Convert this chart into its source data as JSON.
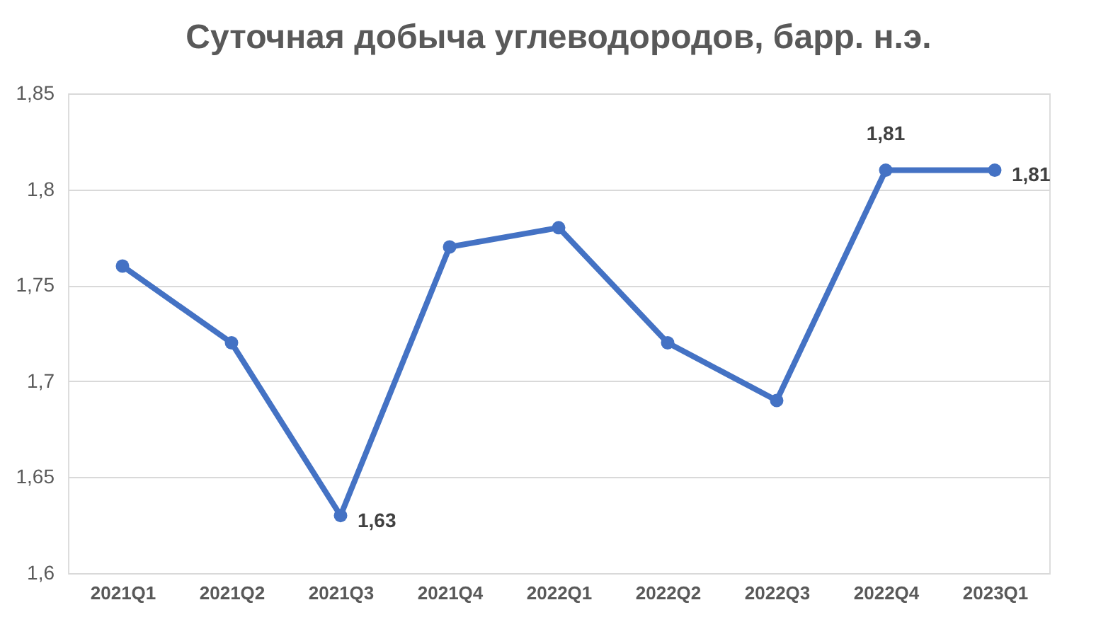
{
  "chart_data": {
    "type": "line",
    "title": "Суточная добыча углеводородов, барр. н.э.",
    "categories": [
      "2021Q1",
      "2021Q2",
      "2021Q3",
      "2021Q4",
      "2022Q1",
      "2022Q2",
      "2022Q3",
      "2022Q4",
      "2023Q1"
    ],
    "series": [
      {
        "color": "#4472c4",
        "values": [
          1.76,
          1.72,
          1.63,
          1.77,
          1.78,
          1.72,
          1.69,
          1.81,
          1.81
        ],
        "value_labels": [
          null,
          null,
          "1,63",
          null,
          null,
          null,
          null,
          "1,81",
          "1,81"
        ]
      }
    ],
    "ylim": [
      1.6,
      1.85
    ],
    "yticks": [
      {
        "value": 1.6,
        "label": "1,6"
      },
      {
        "value": 1.65,
        "label": "1,65"
      },
      {
        "value": 1.7,
        "label": "1,7"
      },
      {
        "value": 1.75,
        "label": "1,75"
      },
      {
        "value": 1.8,
        "label": "1,8"
      },
      {
        "value": 1.85,
        "label": "1,85"
      }
    ],
    "grid": "y",
    "marker": "circle",
    "line_style": "solid"
  }
}
